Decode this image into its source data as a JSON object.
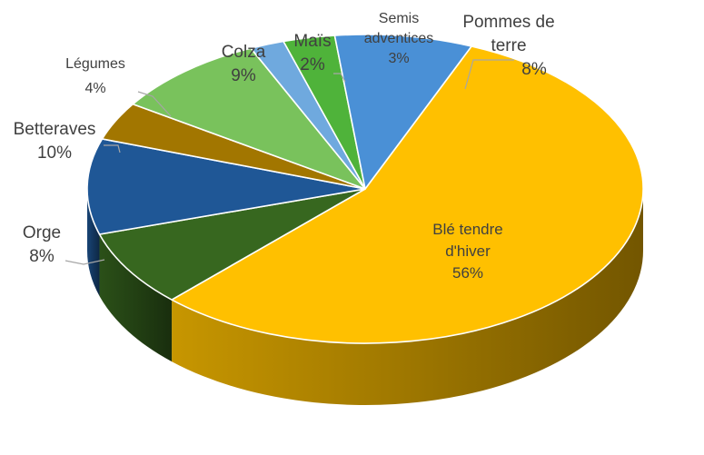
{
  "chart_data": {
    "type": "pie",
    "title": "",
    "three_d": true,
    "slices": [
      {
        "label": "Blé tendre d'hiver",
        "lines": [
          "Blé tendre",
          "d'hiver"
        ],
        "value": 56,
        "value_label": "56%",
        "color": "#ffc000"
      },
      {
        "label": "Orge",
        "lines": [
          "Orge"
        ],
        "value": 8,
        "value_label": "8%",
        "color": "#37671f"
      },
      {
        "label": "Betteraves",
        "lines": [
          "Betteraves"
        ],
        "value": 10,
        "value_label": "10%",
        "color": "#1f5796"
      },
      {
        "label": "Légumes",
        "lines": [
          "Légumes"
        ],
        "value": 4,
        "value_label": "4%",
        "color": "#a27600"
      },
      {
        "label": "Colza",
        "lines": [
          "Colza"
        ],
        "value": 9,
        "value_label": "9%",
        "color": "#79c25c"
      },
      {
        "label": "Maïs",
        "lines": [
          "Maïs"
        ],
        "value": 2,
        "value_label": "2%",
        "color": "#6fa9de"
      },
      {
        "label": "Semis adventices",
        "lines": [
          "Semis",
          "adventices"
        ],
        "value": 3,
        "value_label": "3%",
        "color": "#4fb33a"
      },
      {
        "label": "Pommes de terre",
        "lines": [
          "Pommes de",
          "terre"
        ],
        "value": 8,
        "value_label": "8%",
        "color": "#4a90d6"
      }
    ],
    "legend": "none",
    "data_labels": "category and percentage"
  }
}
